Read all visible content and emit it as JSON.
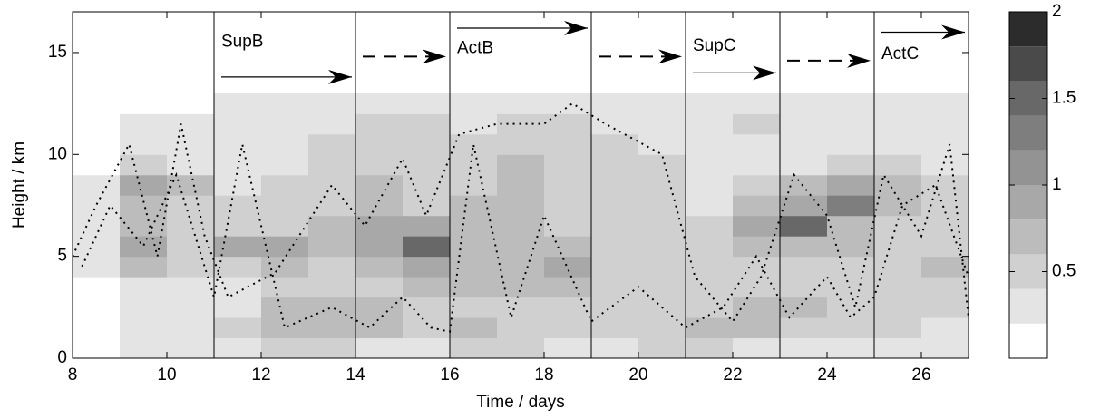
{
  "chart_data": {
    "type": "contour",
    "xlabel": "Time / days",
    "ylabel": "Height / km",
    "xlim": [
      8,
      27
    ],
    "ylim": [
      0,
      17
    ],
    "xticks": [
      8,
      10,
      12,
      14,
      16,
      18,
      20,
      22,
      24,
      26
    ],
    "yticks": [
      0,
      5,
      10,
      15
    ],
    "x": [
      8.5,
      9.5,
      10.5,
      11.5,
      12.5,
      13.5,
      14.5,
      15.5,
      16.5,
      17.5,
      18.5,
      19.5,
      20.5,
      21.5,
      22.5,
      23.5,
      24.5,
      25.5,
      26.5
    ],
    "y": [
      0.5,
      1.5,
      2.5,
      3.5,
      4.5,
      5.5,
      6.5,
      7.5,
      8.5,
      9.5,
      10.5,
      11.5,
      12.5
    ],
    "z": [
      [
        0.1,
        0.2,
        0.3,
        0.3,
        0.4,
        0.4,
        0.3,
        0.3,
        0.4,
        0.4,
        0.3,
        0.3,
        0.4,
        0.4,
        0.3,
        0.3,
        0.3,
        0.3,
        0.3
      ],
      [
        0.1,
        0.3,
        0.3,
        0.4,
        0.7,
        0.7,
        0.6,
        0.5,
        0.6,
        0.5,
        0.5,
        0.4,
        0.5,
        0.6,
        0.6,
        0.5,
        0.4,
        0.4,
        0.3
      ],
      [
        0.1,
        0.3,
        0.3,
        0.3,
        0.6,
        0.6,
        0.6,
        0.5,
        0.5,
        0.5,
        0.5,
        0.4,
        0.4,
        0.5,
        0.6,
        0.6,
        0.4,
        0.4,
        0.4
      ],
      [
        0.1,
        0.3,
        0.3,
        0.3,
        0.5,
        0.5,
        0.5,
        0.6,
        0.6,
        0.6,
        0.6,
        0.5,
        0.4,
        0.4,
        0.4,
        0.5,
        0.4,
        0.4,
        0.5
      ],
      [
        0.3,
        0.6,
        0.4,
        0.5,
        0.6,
        0.5,
        0.7,
        0.8,
        0.7,
        0.7,
        0.8,
        0.5,
        0.5,
        0.4,
        0.5,
        0.5,
        0.5,
        0.5,
        0.6
      ],
      [
        0.3,
        0.9,
        0.5,
        0.8,
        0.8,
        0.7,
        0.8,
        1.4,
        0.7,
        0.7,
        0.6,
        0.5,
        0.4,
        0.4,
        0.6,
        0.7,
        0.6,
        0.5,
        0.5
      ],
      [
        0.3,
        0.6,
        0.4,
        0.5,
        0.5,
        0.6,
        0.8,
        0.8,
        0.6,
        0.7,
        0.5,
        0.4,
        0.4,
        0.4,
        0.8,
        1.4,
        0.7,
        0.5,
        0.4
      ],
      [
        0.3,
        0.6,
        0.4,
        0.4,
        0.4,
        0.5,
        0.7,
        0.5,
        0.6,
        0.6,
        0.5,
        0.5,
        0.4,
        0.3,
        0.6,
        0.9,
        1.3,
        0.6,
        0.4
      ],
      [
        0.3,
        0.9,
        0.6,
        0.3,
        0.4,
        0.4,
        0.6,
        0.5,
        0.5,
        0.6,
        0.5,
        0.5,
        0.4,
        0.3,
        0.4,
        0.6,
        0.9,
        0.7,
        0.4
      ],
      [
        0,
        0.5,
        0.3,
        0.3,
        0.3,
        0.4,
        0.5,
        0.4,
        0.5,
        0.6,
        0.5,
        0.4,
        0.4,
        0.3,
        0.3,
        0.3,
        0.4,
        0.5,
        0.3
      ],
      [
        0,
        0.3,
        0.3,
        0.3,
        0.3,
        0.4,
        0.5,
        0.5,
        0.4,
        0.5,
        0.4,
        0.4,
        0.3,
        0.3,
        0.3,
        0.3,
        0.3,
        0.3,
        0.3
      ],
      [
        0,
        0.3,
        0.3,
        0.3,
        0.3,
        0.3,
        0.5,
        0.4,
        0.3,
        0.5,
        0.4,
        0.3,
        0.3,
        0.3,
        0.5,
        0.3,
        0.3,
        0.3,
        0.3
      ],
      [
        0,
        0,
        0,
        0.3,
        0.3,
        0.3,
        0.3,
        0.3,
        0.3,
        0.3,
        0.3,
        0.3,
        0.3,
        0.3,
        0.3,
        0.3,
        0.3,
        0.3,
        0.3
      ]
    ],
    "levels": [
      0,
      0.2,
      0.4,
      0.6,
      0.8,
      1,
      1.2,
      1.4,
      1.6,
      1.8,
      2
    ],
    "colors": [
      "#ffffff",
      "#e4e4e4",
      "#d0d0d0",
      "#bcbcbc",
      "#a8a8a8",
      "#939393",
      "#7e7e7e",
      "#686868",
      "#4a4a4a",
      "#2c2c2c"
    ],
    "colorbar_ticks": [
      0.5,
      1,
      1.5,
      2
    ],
    "lines": [
      {
        "x": [
          8,
          8.5,
          9.2,
          9.8,
          10.3,
          10.8,
          11.3,
          12.3,
          13.5,
          14.2,
          15,
          15.5,
          16.2,
          17,
          18,
          18.6,
          19.3,
          20.5,
          21.2,
          22,
          22.6,
          23.3,
          24,
          24.6,
          25.2,
          26,
          26.6,
          27
        ],
        "y": [
          5,
          7.5,
          10.5,
          5,
          11.5,
          6,
          3,
          4.2,
          8.5,
          6.5,
          9.8,
          7,
          11,
          11.5,
          11.5,
          12.5,
          11.5,
          10,
          4,
          1.8,
          4,
          9,
          7,
          2.5,
          9,
          6,
          10.5,
          2
        ]
      },
      {
        "x": [
          8.2,
          8.8,
          9.5,
          10.2,
          11,
          11.6,
          12.5,
          13.5,
          14.3,
          15,
          15.6,
          16,
          16.5,
          17.3,
          18,
          19,
          20,
          21,
          21.8,
          22.5,
          23.2,
          24,
          24.5,
          25,
          25.6,
          26.3,
          27
        ],
        "y": [
          4.5,
          7.5,
          5.5,
          9,
          3,
          10.5,
          1.5,
          2.5,
          1.5,
          3,
          1.5,
          1.3,
          10.5,
          2,
          7,
          1.8,
          3.5,
          1.5,
          2.5,
          5,
          2,
          4,
          2,
          3,
          7.5,
          8.5,
          4
        ]
      }
    ],
    "phases": [
      {
        "label": "SupB",
        "start": 11,
        "end": 14
      },
      {
        "label": "ActB",
        "start": 16,
        "end": 19
      },
      {
        "label": "SupC",
        "start": 21,
        "end": 23
      },
      {
        "label": "ActC",
        "start": 25,
        "end": 27
      }
    ]
  }
}
